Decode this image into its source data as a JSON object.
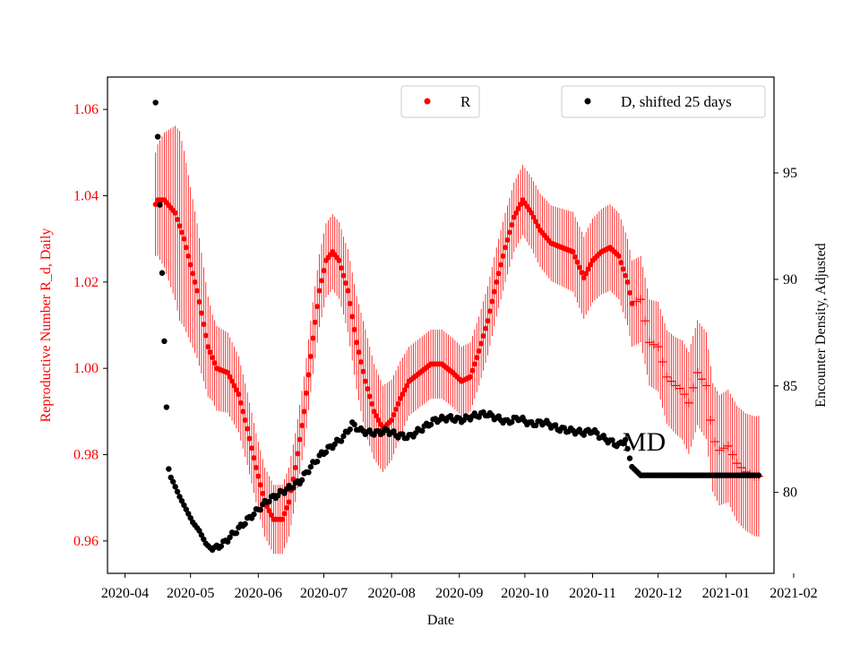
{
  "chart_data": {
    "type": "scatter",
    "xlabel": "Date",
    "y_left_label": "Reproductive Number R_d, Daily",
    "y_right_label": "Encounter Density, Adjusted",
    "x_ticks": [
      "2020-04",
      "2020-05",
      "2020-06",
      "2020-07",
      "2020-08",
      "2020-09",
      "2020-10",
      "2020-11",
      "2020-12",
      "2021-01",
      "2021-02"
    ],
    "xlim_days": [
      -8,
      297
    ],
    "y_left_ticks": [
      "0.96",
      "0.98",
      "1.00",
      "1.02",
      "1.04",
      "1.06"
    ],
    "y_left_tick_values": [
      0.96,
      0.98,
      1.0,
      1.02,
      1.04,
      1.06
    ],
    "y_left_lim": [
      0.9525,
      1.0675
    ],
    "y_right_ticks": [
      "80",
      "85",
      "90",
      "95"
    ],
    "y_right_tick_values": [
      80,
      85,
      90,
      95
    ],
    "y_right_lim": [
      76.2,
      99.5
    ],
    "annotation": "MD",
    "annotation_at": {
      "day": 244,
      "r": 0.9835
    },
    "colors": {
      "r": "#ff0000",
      "d": "#000000",
      "axis": "#000000"
    },
    "legend": [
      {
        "label": "R",
        "color": "#ff0000",
        "placement": "top-center"
      },
      {
        "label": "D, shifted 25 days",
        "color": "#000000",
        "placement": "top-right"
      }
    ],
    "series_R": {
      "name": "R",
      "axis": "left",
      "marker": "dot until day 232, plus after",
      "day_start": 14,
      "day_end": 290,
      "keypoints": [
        [
          14,
          1.038
        ],
        [
          15,
          1.039
        ],
        [
          18,
          1.039
        ],
        [
          23,
          1.036
        ],
        [
          27,
          1.03
        ],
        [
          33,
          1.018
        ],
        [
          38,
          1.005
        ],
        [
          42,
          1.0
        ],
        [
          47,
          0.999
        ],
        [
          52,
          0.994
        ],
        [
          56,
          0.986
        ],
        [
          60,
          0.977
        ],
        [
          64,
          0.969
        ],
        [
          68,
          0.965
        ],
        [
          72,
          0.965
        ],
        [
          75,
          0.969
        ],
        [
          78,
          0.977
        ],
        [
          82,
          0.99
        ],
        [
          86,
          1.007
        ],
        [
          89,
          1.018
        ],
        [
          92,
          1.025
        ],
        [
          95,
          1.027
        ],
        [
          98,
          1.025
        ],
        [
          102,
          1.018
        ],
        [
          106,
          1.006
        ],
        [
          110,
          0.997
        ],
        [
          114,
          0.99
        ],
        [
          118,
          0.986
        ],
        [
          122,
          0.988
        ],
        [
          126,
          0.993
        ],
        [
          130,
          0.997
        ],
        [
          135,
          0.999
        ],
        [
          140,
          1.001
        ],
        [
          145,
          1.001
        ],
        [
          150,
          0.999
        ],
        [
          154,
          0.997
        ],
        [
          158,
          0.998
        ],
        [
          162,
          1.004
        ],
        [
          166,
          1.011
        ],
        [
          170,
          1.02
        ],
        [
          174,
          1.028
        ],
        [
          178,
          1.035
        ],
        [
          182,
          1.039
        ],
        [
          186,
          1.036
        ],
        [
          190,
          1.032
        ],
        [
          195,
          1.029
        ],
        [
          200,
          1.028
        ],
        [
          205,
          1.027
        ],
        [
          210,
          1.021
        ],
        [
          214,
          1.025
        ],
        [
          218,
          1.027
        ],
        [
          222,
          1.028
        ],
        [
          226,
          1.026
        ],
        [
          230,
          1.02
        ],
        [
          232,
          1.015
        ],
        [
          236,
          1.016
        ],
        [
          240,
          1.006
        ],
        [
          244,
          1.005
        ],
        [
          248,
          0.998
        ],
        [
          252,
          0.996
        ],
        [
          255,
          0.995
        ],
        [
          258,
          0.992
        ],
        [
          262,
          0.999
        ],
        [
          266,
          0.996
        ],
        [
          269,
          0.984
        ],
        [
          272,
          0.981
        ],
        [
          276,
          0.982
        ],
        [
          280,
          0.978
        ],
        [
          284,
          0.976
        ],
        [
          288,
          0.975
        ]
      ],
      "error_halfwidth": [
        [
          14,
          0.012
        ],
        [
          25,
          0.022
        ],
        [
          40,
          0.01
        ],
        [
          60,
          0.008
        ],
        [
          80,
          0.008
        ],
        [
          100,
          0.009
        ],
        [
          110,
          0.012
        ],
        [
          118,
          0.01
        ],
        [
          130,
          0.008
        ],
        [
          160,
          0.008
        ],
        [
          180,
          0.008
        ],
        [
          200,
          0.009
        ],
        [
          220,
          0.01
        ],
        [
          240,
          0.01
        ],
        [
          260,
          0.012
        ],
        [
          290,
          0.014
        ]
      ]
    },
    "series_D": {
      "name": "D, shifted 25 days",
      "axis": "right",
      "marker": "dot",
      "keypoints": [
        [
          14,
          98.3
        ],
        [
          15,
          96.7
        ],
        [
          16,
          93.5
        ],
        [
          17,
          90.3
        ],
        [
          18,
          87.1
        ],
        [
          19,
          84.0
        ],
        [
          20,
          81.1
        ],
        [
          21,
          80.7
        ],
        [
          22,
          80.5
        ],
        [
          25,
          79.8
        ],
        [
          28,
          79.2
        ],
        [
          31,
          78.6
        ],
        [
          34,
          78.2
        ],
        [
          37,
          77.6
        ],
        [
          40,
          77.3
        ],
        [
          45,
          77.6
        ],
        [
          50,
          78.1
        ],
        [
          55,
          78.6
        ],
        [
          60,
          79.1
        ],
        [
          65,
          79.6
        ],
        [
          70,
          79.9
        ],
        [
          75,
          80.2
        ],
        [
          80,
          80.5
        ],
        [
          85,
          81.2
        ],
        [
          90,
          81.8
        ],
        [
          95,
          82.2
        ],
        [
          100,
          82.6
        ],
        [
          104,
          83.2
        ],
        [
          108,
          82.9
        ],
        [
          112,
          82.8
        ],
        [
          116,
          82.8
        ],
        [
          120,
          82.9
        ],
        [
          124,
          82.7
        ],
        [
          130,
          82.6
        ],
        [
          136,
          83.0
        ],
        [
          142,
          83.4
        ],
        [
          148,
          83.5
        ],
        [
          154,
          83.4
        ],
        [
          160,
          83.6
        ],
        [
          165,
          83.7
        ],
        [
          170,
          83.5
        ],
        [
          175,
          83.3
        ],
        [
          180,
          83.5
        ],
        [
          186,
          83.2
        ],
        [
          192,
          83.3
        ],
        [
          198,
          83.0
        ],
        [
          204,
          82.9
        ],
        [
          210,
          82.8
        ],
        [
          214,
          82.9
        ],
        [
          218,
          82.6
        ],
        [
          222,
          82.4
        ],
        [
          226,
          82.2
        ],
        [
          229,
          82.5
        ],
        [
          231,
          81.6
        ],
        [
          232,
          81.2
        ],
        [
          234,
          81.0
        ],
        [
          236,
          80.8
        ],
        [
          240,
          80.8
        ],
        [
          260,
          80.8
        ],
        [
          290,
          80.8
        ]
      ]
    }
  }
}
